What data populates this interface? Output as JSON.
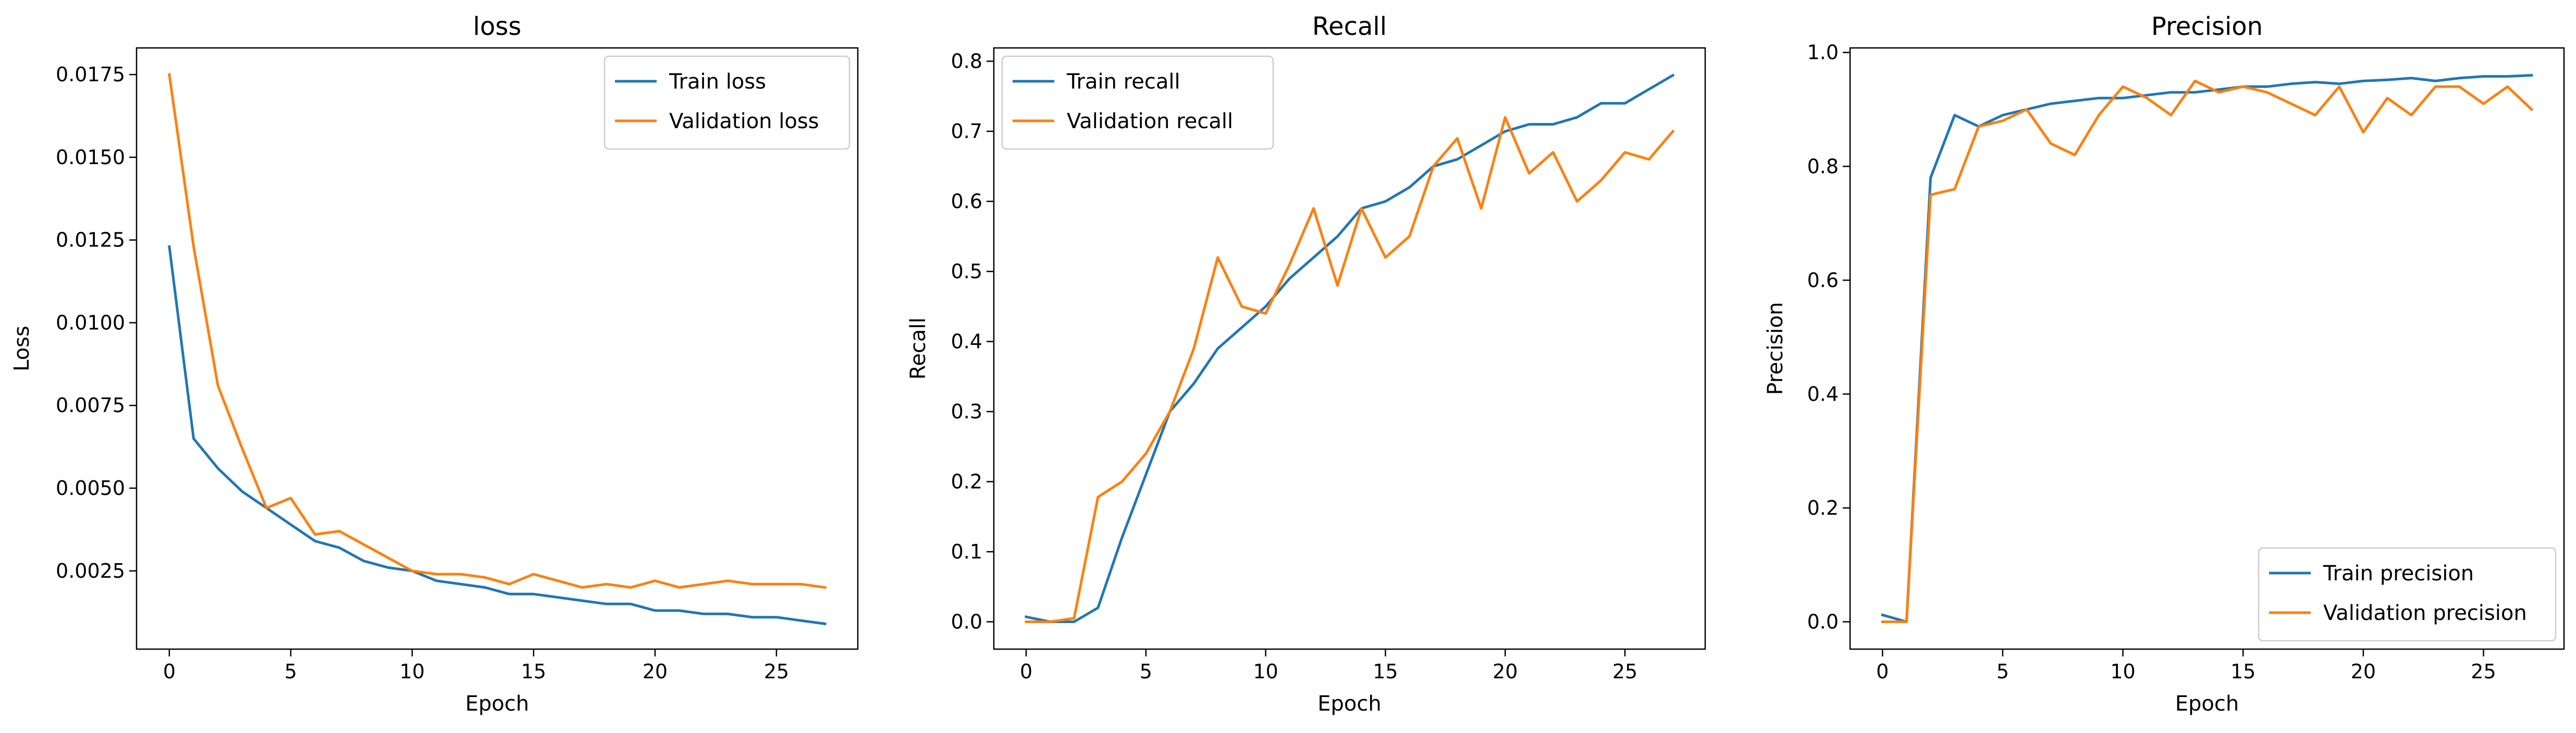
{
  "chart_data": [
    {
      "type": "line",
      "title": "loss",
      "xlabel": "Epoch",
      "ylabel": "Loss",
      "xlim": [
        -1.35,
        28.35
      ],
      "ylim": [
        0.000135,
        0.018305
      ],
      "xticks": [
        0,
        5,
        10,
        15,
        20,
        25
      ],
      "yticks": [
        0.0025,
        0.005,
        0.0075,
        0.01,
        0.0125,
        0.015,
        0.0175
      ],
      "ytick_decimals": 4,
      "grid": false,
      "legend": "upper right",
      "colors": [
        "#1f77b4",
        "#ff7f0e"
      ],
      "x": [
        0,
        1,
        2,
        3,
        4,
        5,
        6,
        7,
        8,
        9,
        10,
        11,
        12,
        13,
        14,
        15,
        16,
        17,
        18,
        19,
        20,
        21,
        22,
        23,
        24,
        25,
        26,
        27
      ],
      "series": [
        {
          "name": "Train loss",
          "values": [
            0.0123,
            0.0065,
            0.0056,
            0.0049,
            0.0044,
            0.0039,
            0.0034,
            0.0032,
            0.0028,
            0.0026,
            0.0025,
            0.0022,
            0.0021,
            0.002,
            0.0018,
            0.0018,
            0.0017,
            0.0016,
            0.0015,
            0.0015,
            0.0013,
            0.0013,
            0.0012,
            0.0012,
            0.0011,
            0.0011,
            0.001,
            0.0009
          ]
        },
        {
          "name": "Validation loss",
          "values": [
            0.0175,
            0.0123,
            0.0081,
            0.0062,
            0.0044,
            0.0047,
            0.0036,
            0.0037,
            0.0033,
            0.0029,
            0.0025,
            0.0024,
            0.0024,
            0.0023,
            0.0021,
            0.0024,
            0.0022,
            0.002,
            0.0021,
            0.002,
            0.0022,
            0.002,
            0.0021,
            0.0022,
            0.0021,
            0.0021,
            0.0021,
            0.002
          ]
        }
      ]
    },
    {
      "type": "line",
      "title": "Recall",
      "xlabel": "Epoch",
      "ylabel": "Recall",
      "xlim": [
        -1.35,
        28.35
      ],
      "ylim": [
        -0.039,
        0.819
      ],
      "xticks": [
        0,
        5,
        10,
        15,
        20,
        25
      ],
      "yticks": [
        0.0,
        0.1,
        0.2,
        0.3,
        0.4,
        0.5,
        0.6,
        0.7,
        0.8
      ],
      "ytick_decimals": 1,
      "grid": false,
      "legend": "upper left",
      "colors": [
        "#1f77b4",
        "#ff7f0e"
      ],
      "x": [
        0,
        1,
        2,
        3,
        4,
        5,
        6,
        7,
        8,
        9,
        10,
        11,
        12,
        13,
        14,
        15,
        16,
        17,
        18,
        19,
        20,
        21,
        22,
        23,
        24,
        25,
        26,
        27
      ],
      "series": [
        {
          "name": "Train recall",
          "values": [
            0.007,
            0.0,
            0.0,
            0.02,
            0.12,
            0.21,
            0.3,
            0.34,
            0.39,
            0.42,
            0.45,
            0.49,
            0.52,
            0.55,
            0.59,
            0.6,
            0.62,
            0.65,
            0.66,
            0.68,
            0.7,
            0.71,
            0.71,
            0.72,
            0.74,
            0.74,
            0.76,
            0.78
          ]
        },
        {
          "name": "Validation recall",
          "values": [
            0.0,
            0.0,
            0.005,
            0.178,
            0.2,
            0.24,
            0.3,
            0.39,
            0.52,
            0.45,
            0.44,
            0.51,
            0.59,
            0.48,
            0.59,
            0.52,
            0.55,
            0.65,
            0.69,
            0.59,
            0.72,
            0.64,
            0.67,
            0.6,
            0.63,
            0.67,
            0.66,
            0.7
          ]
        }
      ]
    },
    {
      "type": "line",
      "title": "Precision",
      "xlabel": "Epoch",
      "ylabel": "Precision",
      "xlim": [
        -1.35,
        28.35
      ],
      "ylim": [
        -0.048,
        1.008
      ],
      "xticks": [
        0,
        5,
        10,
        15,
        20,
        25
      ],
      "yticks": [
        0.0,
        0.2,
        0.4,
        0.6,
        0.8,
        1.0
      ],
      "ytick_decimals": 1,
      "grid": false,
      "legend": "lower right",
      "colors": [
        "#1f77b4",
        "#ff7f0e"
      ],
      "x": [
        0,
        1,
        2,
        3,
        4,
        5,
        6,
        7,
        8,
        9,
        10,
        11,
        12,
        13,
        14,
        15,
        16,
        17,
        18,
        19,
        20,
        21,
        22,
        23,
        24,
        25,
        26,
        27
      ],
      "series": [
        {
          "name": "Train precision",
          "values": [
            0.012,
            0.0,
            0.78,
            0.89,
            0.87,
            0.89,
            0.9,
            0.91,
            0.915,
            0.92,
            0.92,
            0.925,
            0.93,
            0.93,
            0.935,
            0.94,
            0.94,
            0.945,
            0.948,
            0.945,
            0.95,
            0.952,
            0.955,
            0.95,
            0.955,
            0.958,
            0.958,
            0.96
          ]
        },
        {
          "name": "Validation precision",
          "values": [
            0.0,
            0.0,
            0.75,
            0.76,
            0.87,
            0.88,
            0.9,
            0.84,
            0.82,
            0.89,
            0.94,
            0.92,
            0.89,
            0.95,
            0.93,
            0.94,
            0.93,
            0.91,
            0.89,
            0.94,
            0.86,
            0.92,
            0.89,
            0.94,
            0.94,
            0.91,
            0.94,
            0.9
          ]
        }
      ]
    }
  ]
}
